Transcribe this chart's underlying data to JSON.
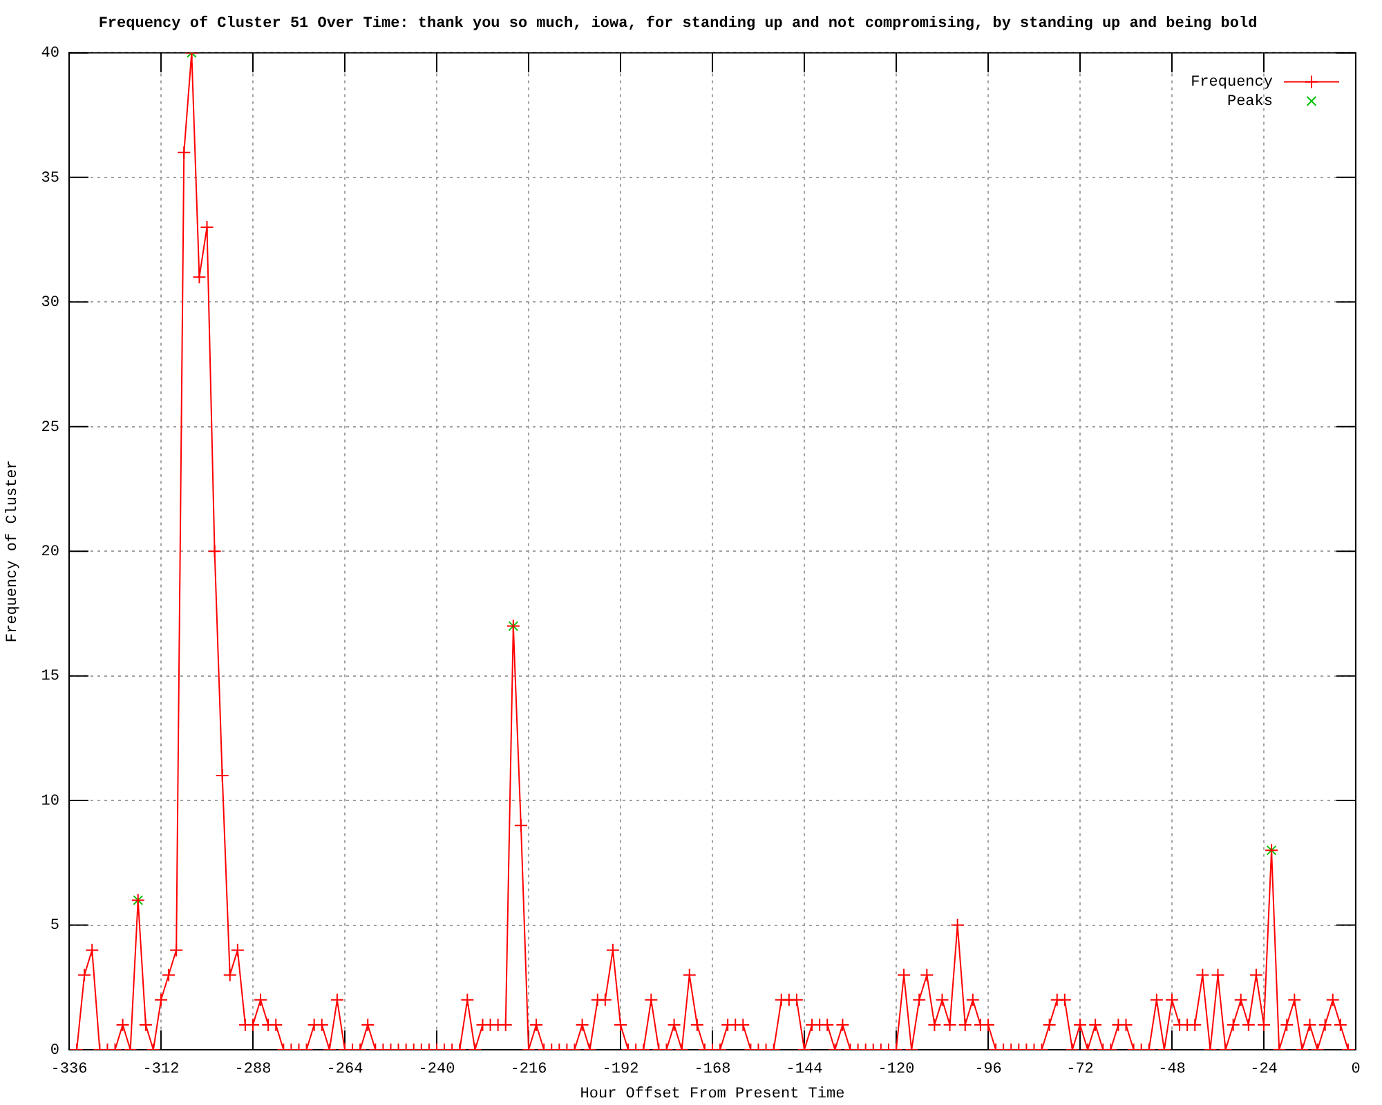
{
  "chart_data": {
    "type": "line",
    "title": "Frequency of Cluster 51 Over Time: thank you so much, iowa, for standing up and not compromising, by standing up and being bold",
    "xlabel": "Hour Offset From Present Time",
    "ylabel": "Frequency of Cluster",
    "x": [
      -334,
      -332,
      -330,
      -328,
      -326,
      -324,
      -322,
      -320,
      -318,
      -316,
      -314,
      -312,
      -310,
      -308,
      -306,
      -304,
      -302,
      -300,
      -298,
      -296,
      -294,
      -292,
      -290,
      -288,
      -286,
      -284,
      -282,
      -280,
      -278,
      -276,
      -274,
      -272,
      -270,
      -268,
      -266,
      -264,
      -262,
      -260,
      -258,
      -256,
      -254,
      -252,
      -250,
      -248,
      -246,
      -244,
      -242,
      -240,
      -238,
      -236,
      -234,
      -232,
      -230,
      -228,
      -226,
      -224,
      -222,
      -220,
      -218,
      -216,
      -214,
      -212,
      -210,
      -208,
      -206,
      -204,
      -202,
      -200,
      -198,
      -196,
      -194,
      -192,
      -190,
      -188,
      -186,
      -184,
      -182,
      -180,
      -178,
      -176,
      -174,
      -172,
      -170,
      -168,
      -166,
      -164,
      -162,
      -160,
      -158,
      -156,
      -154,
      -152,
      -150,
      -148,
      -146,
      -144,
      -142,
      -140,
      -138,
      -136,
      -134,
      -132,
      -130,
      -128,
      -126,
      -124,
      -122,
      -120,
      -118,
      -116,
      -114,
      -112,
      -110,
      -108,
      -106,
      -104,
      -102,
      -100,
      -98,
      -96,
      -94,
      -92,
      -90,
      -88,
      -86,
      -84,
      -82,
      -80,
      -78,
      -76,
      -74,
      -72,
      -70,
      -68,
      -66,
      -64,
      -62,
      -60,
      -58,
      -56,
      -54,
      -52,
      -50,
      -48,
      -46,
      -44,
      -42,
      -40,
      -38,
      -36,
      -34,
      -32,
      -30,
      -28,
      -26,
      -24,
      -22,
      -20,
      -18,
      -16,
      -14,
      -12,
      -10,
      -8,
      -6,
      -4,
      -2
    ],
    "series": [
      {
        "name": "Frequency",
        "color": "#ff0000",
        "values": [
          0,
          3,
          4,
          0,
          0,
          0,
          1,
          0,
          6,
          1,
          0,
          2,
          3,
          4,
          36,
          40,
          31,
          33,
          20,
          11,
          3,
          4,
          1,
          1,
          2,
          1,
          1,
          0,
          0,
          0,
          0,
          1,
          1,
          0,
          2,
          0,
          0,
          0,
          1,
          0,
          0,
          0,
          0,
          0,
          0,
          0,
          0,
          0,
          0,
          0,
          0,
          2,
          0,
          1,
          1,
          1,
          1,
          17,
          9,
          0,
          1,
          0,
          0,
          0,
          0,
          0,
          1,
          0,
          2,
          2,
          4,
          1,
          0,
          0,
          0,
          2,
          0,
          0,
          1,
          0,
          3,
          1,
          0,
          0,
          0,
          1,
          1,
          1,
          0,
          0,
          0,
          0,
          2,
          2,
          2,
          0,
          1,
          1,
          1,
          0,
          1,
          0,
          0,
          0,
          0,
          0,
          0,
          0,
          3,
          0,
          2,
          3,
          1,
          2,
          1,
          5,
          1,
          2,
          1,
          1,
          0,
          0,
          0,
          0,
          0,
          0,
          0,
          1,
          2,
          2,
          0,
          1,
          0,
          1,
          0,
          0,
          1,
          1,
          0,
          0,
          0,
          2,
          0,
          2,
          1,
          1,
          1,
          3,
          0,
          3,
          0,
          1,
          2,
          1,
          3,
          1,
          8,
          0,
          1,
          2,
          0,
          1,
          0,
          1,
          2,
          1,
          0
        ]
      },
      {
        "name": "Peaks",
        "type": "scatter",
        "color": "#00c000",
        "x": [
          -318,
          -304,
          -220,
          -22
        ],
        "values": [
          6,
          40,
          17,
          8
        ]
      }
    ],
    "marker": "cross",
    "xlim": [
      -336,
      0
    ],
    "xticks": [
      -336,
      -312,
      -288,
      -264,
      -240,
      -216,
      -192,
      -168,
      -144,
      -120,
      -96,
      -72,
      -48,
      -24,
      0
    ],
    "ylim": [
      0,
      40
    ],
    "yticks": [
      0,
      5,
      10,
      15,
      20,
      25,
      30,
      35,
      40
    ],
    "grid": true,
    "legend": "top right"
  }
}
